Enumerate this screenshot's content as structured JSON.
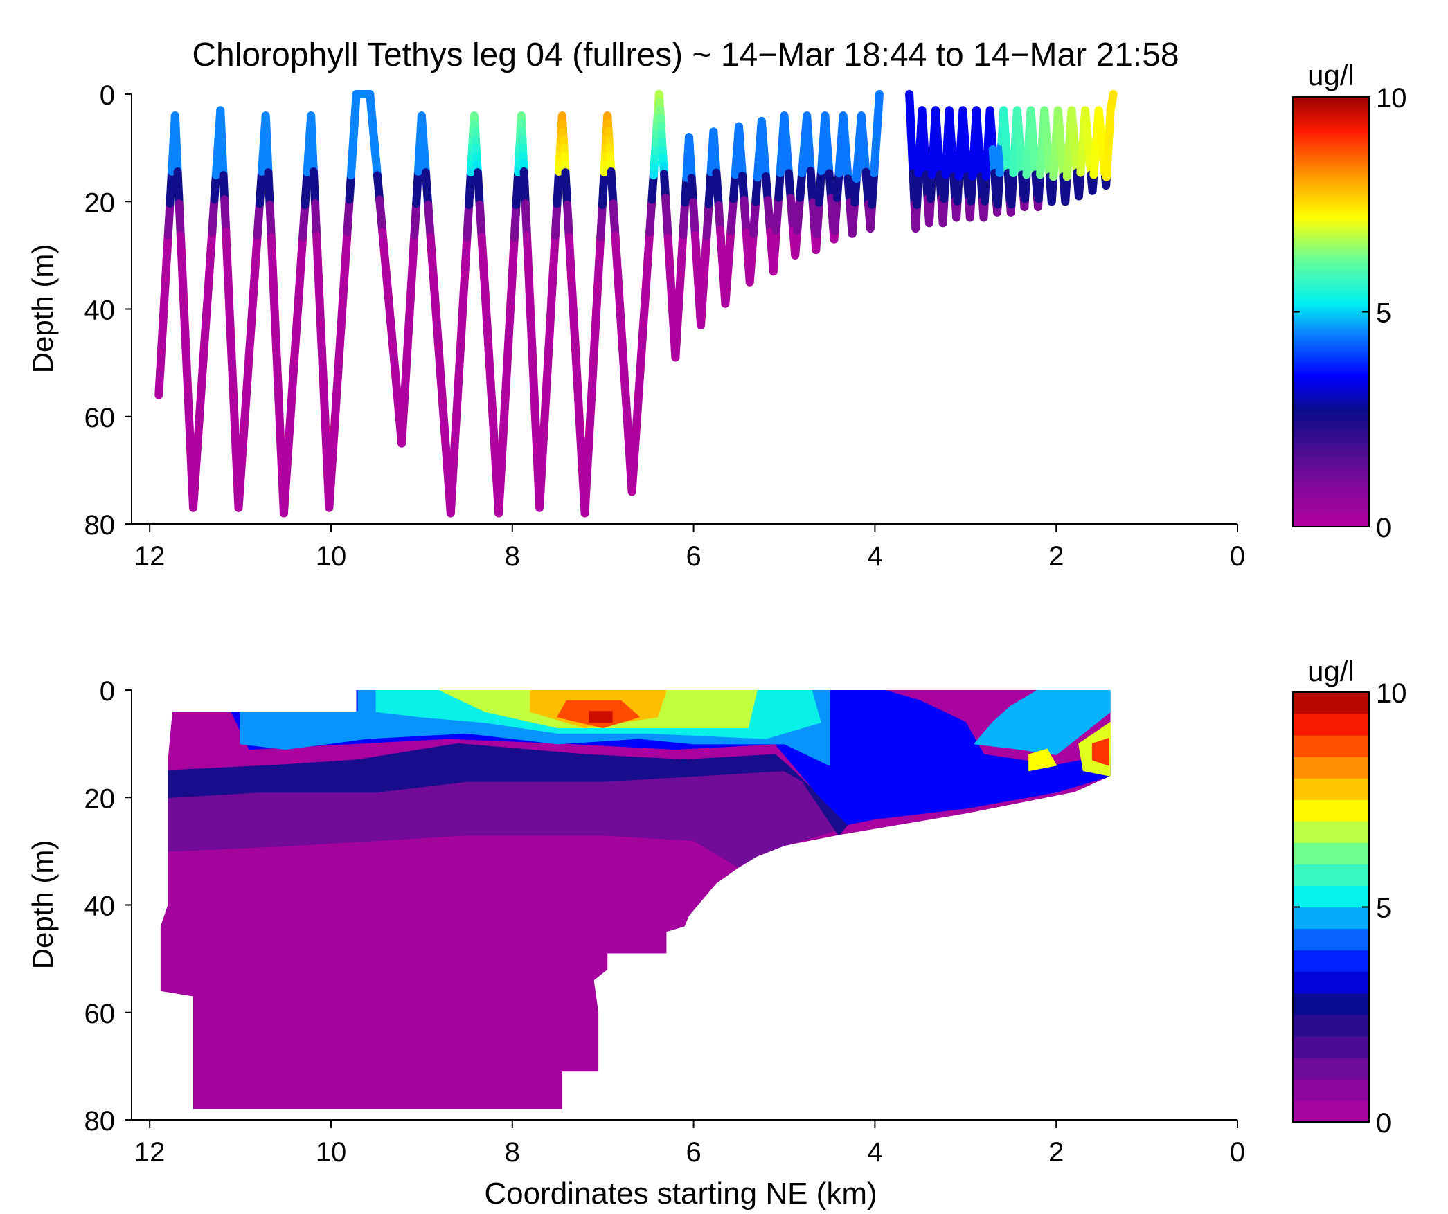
{
  "figure": {
    "title": "Chlorophyll Tethys leg 04 (fullres) ~ 14−Mar 18:44 to 14−Mar 21:58"
  },
  "chart_data": [
    {
      "type": "scatter",
      "title": "Chlorophyll Tethys leg 04 (fullres) ~ 14−Mar 18:44 to 14−Mar 21:58",
      "xlabel": "",
      "ylabel": "Depth (m)",
      "xlim": [
        12.2,
        0
      ],
      "ylim": [
        0,
        80
      ],
      "y_reversed": true,
      "x_ticks": [
        "12",
        "10",
        "8",
        "6",
        "4",
        "2",
        "0"
      ],
      "y_ticks": [
        "0",
        "20",
        "40",
        "60",
        "80"
      ],
      "colorbar": {
        "label": "ug/l",
        "range": [
          0,
          10
        ],
        "ticks": [
          "0",
          "5",
          "10"
        ],
        "colormap": "jet-like"
      },
      "series": [
        {
          "segments": [
            {
              "x": [
                11.9,
                11.72,
                11.52,
                11.22,
                11.02,
                10.72,
                10.52,
                10.22,
                10.02,
                9.72,
                9.57,
                9.22,
                9.0,
                8.68,
                8.42,
                8.15,
                7.9,
                7.7,
                7.45,
                7.2,
                6.95,
                6.68,
                6.38,
                6.2,
                6.05,
                5.92,
                5.78,
                5.65,
                5.5,
                5.38,
                5.25,
                5.12,
                5.0,
                4.88,
                4.75,
                4.65,
                4.55,
                4.45,
                4.35,
                4.25,
                4.15,
                4.05,
                3.95
              ],
              "depth": [
                56,
                4,
                77,
                3,
                77,
                4,
                78,
                4,
                77,
                0,
                0,
                65,
                4,
                78,
                4,
                78,
                4,
                77,
                4,
                78,
                4,
                74,
                0,
                49,
                8,
                43,
                7,
                39,
                6,
                35,
                5,
                33,
                4,
                30,
                4,
                29,
                4,
                27,
                4,
                26,
                4,
                25,
                0
              ]
            },
            {
              "x": [
                3.62,
                3.55,
                3.48,
                3.4,
                3.33,
                3.25,
                3.18,
                3.1,
                3.03,
                2.95,
                2.88,
                2.8,
                2.73,
                2.65,
                2.58,
                2.5,
                2.43,
                2.35,
                2.28,
                2.2,
                2.13,
                2.05,
                1.98,
                1.9,
                1.83,
                1.75,
                1.68,
                1.6,
                1.53,
                1.45,
                1.4,
                1.37
              ],
              "depth": [
                0,
                25,
                3,
                24,
                3,
                24,
                3,
                23,
                3,
                23,
                3,
                23,
                3,
                22,
                3,
                22,
                3,
                21,
                3,
                21,
                3,
                20,
                3,
                20,
                3,
                19,
                3,
                18,
                3,
                17,
                3,
                0
              ]
            }
          ]
        }
      ]
    },
    {
      "type": "heatmap",
      "title": "",
      "xlabel": "Coordinates starting NE (km)",
      "ylabel": "Depth (m)",
      "xlim": [
        12.2,
        0
      ],
      "ylim": [
        0,
        80
      ],
      "y_reversed": true,
      "x_ticks": [
        "12",
        "10",
        "8",
        "6",
        "4",
        "2",
        "0"
      ],
      "y_ticks": [
        "0",
        "20",
        "40",
        "60",
        "80"
      ],
      "colorbar": {
        "label": "ug/l",
        "range": [
          0,
          10
        ],
        "ticks": [
          "0",
          "5",
          "10"
        ],
        "levels": 20
      },
      "extent": {
        "outline": [
          [
            11.75,
            4
          ],
          [
            9.72,
            4
          ],
          [
            9.72,
            0
          ],
          [
            1.4,
            0
          ],
          [
            1.4,
            16
          ],
          [
            1.8,
            19
          ],
          [
            3.0,
            23
          ],
          [
            4.4,
            27
          ],
          [
            5.0,
            29
          ],
          [
            5.3,
            31
          ],
          [
            5.5,
            33
          ],
          [
            5.75,
            36
          ],
          [
            5.9,
            39
          ],
          [
            6.05,
            42
          ],
          [
            6.1,
            44
          ],
          [
            6.3,
            45
          ],
          [
            6.3,
            49
          ],
          [
            6.95,
            49
          ],
          [
            6.95,
            52
          ],
          [
            7.1,
            54
          ],
          [
            7.05,
            60
          ],
          [
            7.05,
            71
          ],
          [
            7.45,
            71
          ],
          [
            7.45,
            78
          ],
          [
            11.52,
            78
          ],
          [
            11.52,
            57
          ],
          [
            11.88,
            56
          ],
          [
            11.88,
            44
          ],
          [
            11.8,
            40
          ],
          [
            11.8,
            13
          ]
        ]
      },
      "contour_bands": [
        {
          "value": 0.3,
          "polygon": [
            [
              11.8,
              30
            ],
            [
              10.5,
              29
            ],
            [
              8.5,
              27
            ],
            [
              7.0,
              27
            ],
            [
              6.2,
              28
            ],
            [
              5.5,
              31
            ],
            [
              5.0,
              34
            ],
            [
              5.5,
              33
            ],
            [
              5.75,
              36
            ],
            [
              5.9,
              39
            ],
            [
              6.05,
              42
            ],
            [
              6.1,
              44
            ],
            [
              6.3,
              45
            ],
            [
              6.3,
              49
            ],
            [
              6.95,
              49
            ],
            [
              6.95,
              52
            ],
            [
              7.1,
              54
            ],
            [
              7.05,
              60
            ],
            [
              7.05,
              71
            ],
            [
              7.45,
              71
            ],
            [
              7.45,
              78
            ],
            [
              11.52,
              78
            ],
            [
              11.52,
              57
            ],
            [
              11.88,
              56
            ],
            [
              11.88,
              44
            ],
            [
              11.8,
              40
            ]
          ]
        },
        {
          "value": 1.2,
          "polygon": [
            [
              11.8,
              20
            ],
            [
              10.8,
              19
            ],
            [
              9.5,
              19
            ],
            [
              8.5,
              17
            ],
            [
              7.0,
              17
            ],
            [
              6.0,
              16
            ],
            [
              5.0,
              15
            ],
            [
              4.6,
              20
            ],
            [
              4.4,
              26
            ],
            [
              5.0,
              29
            ],
            [
              5.5,
              33
            ],
            [
              6.0,
              28
            ],
            [
              7.0,
              27
            ],
            [
              8.5,
              27
            ],
            [
              10.5,
              29
            ],
            [
              11.8,
              30
            ]
          ]
        },
        {
          "value": 2.5,
          "polygon": [
            [
              11.8,
              15
            ],
            [
              10.6,
              14
            ],
            [
              9.7,
              13
            ],
            [
              8.6,
              10
            ],
            [
              7.2,
              12
            ],
            [
              6.1,
              13
            ],
            [
              5.1,
              12
            ],
            [
              4.9,
              15
            ],
            [
              4.6,
              20
            ],
            [
              4.3,
              25
            ],
            [
              4.4,
              27
            ],
            [
              4.6,
              22
            ],
            [
              4.8,
              17
            ],
            [
              5.0,
              15
            ],
            [
              6.0,
              16
            ],
            [
              7.0,
              17
            ],
            [
              8.5,
              17
            ],
            [
              9.5,
              19
            ],
            [
              10.8,
              19
            ],
            [
              11.8,
              20
            ]
          ]
        },
        {
          "value": 3.5,
          "polygon": [
            [
              11.75,
              4
            ],
            [
              11.1,
              4
            ],
            [
              10.9,
              11
            ],
            [
              9.8,
              10
            ],
            [
              8.7,
              9
            ],
            [
              7.3,
              10
            ],
            [
              6.2,
              11
            ],
            [
              5.1,
              10
            ],
            [
              4.9,
              14
            ],
            [
              4.6,
              20
            ],
            [
              4.3,
              25
            ],
            [
              4.0,
              24
            ],
            [
              3.0,
              22
            ],
            [
              2.0,
              19
            ],
            [
              1.4,
              16
            ],
            [
              1.4,
              12
            ],
            [
              2.0,
              14
            ],
            [
              2.8,
              12
            ],
            [
              3.0,
              6
            ],
            [
              3.5,
              2
            ],
            [
              3.9,
              0
            ],
            [
              9.72,
              0
            ],
            [
              9.72,
              4
            ]
          ]
        },
        {
          "value": 4.6,
          "polygon": [
            [
              11.0,
              4
            ],
            [
              9.7,
              4
            ],
            [
              9.7,
              0
            ],
            [
              4.5,
              0
            ],
            [
              4.5,
              14
            ],
            [
              5.0,
              10
            ],
            [
              6.0,
              10
            ],
            [
              6.6,
              9
            ],
            [
              7.5,
              10
            ],
            [
              8.5,
              8
            ],
            [
              9.6,
              9
            ],
            [
              10.5,
              11
            ],
            [
              11.0,
              10
            ]
          ]
        },
        {
          "value": 5.3,
          "polygon": [
            [
              9.5,
              0
            ],
            [
              4.7,
              0
            ],
            [
              4.6,
              6
            ],
            [
              5.2,
              9
            ],
            [
              6.5,
              8
            ],
            [
              7.5,
              8
            ],
            [
              8.3,
              6
            ],
            [
              9.0,
              5
            ],
            [
              9.5,
              4
            ]
          ]
        },
        {
          "value": 4.8,
          "polygon": [
            [
              2.9,
              10
            ],
            [
              2.4,
              11
            ],
            [
              2.0,
              12
            ],
            [
              1.7,
              8
            ],
            [
              1.4,
              4
            ],
            [
              1.4,
              0
            ],
            [
              2.2,
              0
            ],
            [
              2.5,
              3
            ],
            [
              2.7,
              6
            ]
          ]
        },
        {
          "value": 6.8,
          "polygon": [
            [
              8.8,
              0
            ],
            [
              5.3,
              0
            ],
            [
              5.4,
              7
            ],
            [
              6.4,
              7
            ],
            [
              7.5,
              7
            ],
            [
              8.3,
              4
            ]
          ]
        },
        {
          "value": 7.8,
          "polygon": [
            [
              7.8,
              0
            ],
            [
              6.3,
              0
            ],
            [
              6.4,
              5
            ],
            [
              7.2,
              7
            ],
            [
              7.8,
              4
            ]
          ]
        },
        {
          "value": 8.8,
          "polygon": [
            [
              7.4,
              2
            ],
            [
              6.8,
              2
            ],
            [
              6.6,
              5
            ],
            [
              7.0,
              7
            ],
            [
              7.5,
              5
            ]
          ]
        },
        {
          "value": 9.6,
          "polygon": [
            [
              7.15,
              4
            ],
            [
              6.9,
              4
            ],
            [
              6.9,
              6
            ],
            [
              7.15,
              6
            ]
          ]
        },
        {
          "value": 7.2,
          "polygon": [
            [
              2.3,
              12
            ],
            [
              2.1,
              11
            ],
            [
              2.0,
              14
            ],
            [
              2.3,
              15
            ]
          ]
        },
        {
          "value": 7.0,
          "polygon": [
            [
              1.75,
              10
            ],
            [
              1.4,
              6
            ],
            [
              1.4,
              16
            ],
            [
              1.7,
              15
            ]
          ]
        },
        {
          "value": 9.0,
          "polygon": [
            [
              1.6,
              10
            ],
            [
              1.42,
              9
            ],
            [
              1.42,
              14
            ],
            [
              1.6,
              13
            ]
          ]
        }
      ]
    }
  ]
}
